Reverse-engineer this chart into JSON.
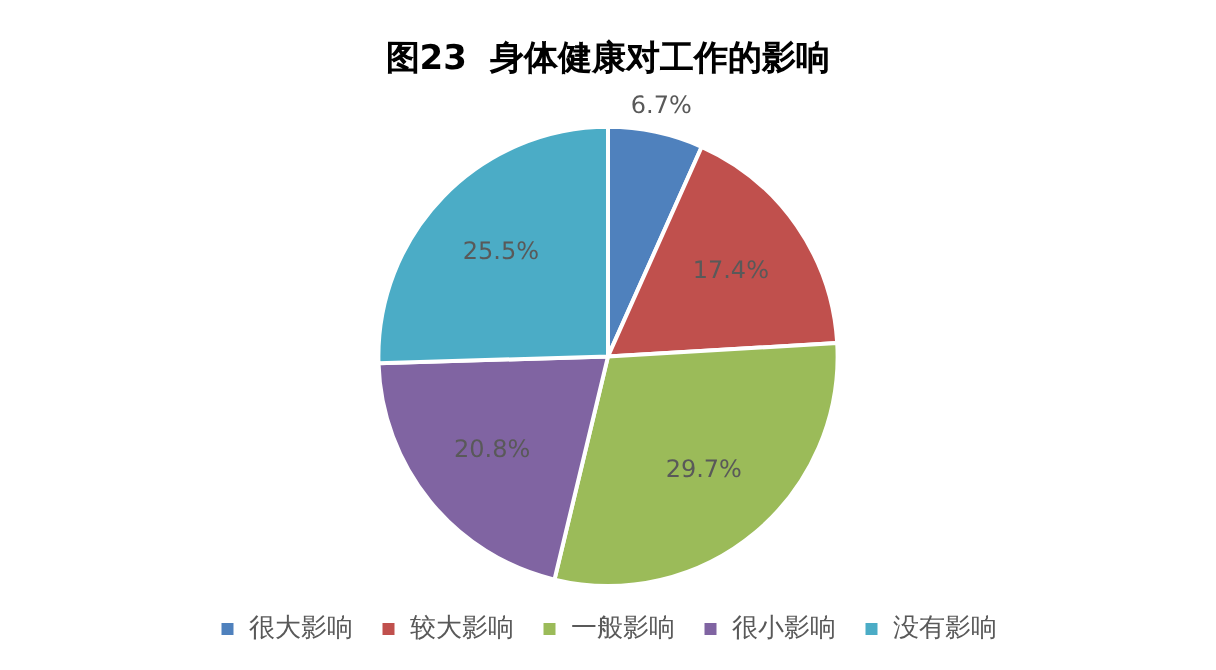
{
  "chart_data": {
    "type": "pie",
    "title": "图23  身体健康对工作的影响",
    "categories": [
      "很大影响",
      "较大影响",
      "一般影响",
      "很小影响",
      "没有影响"
    ],
    "values": [
      6.7,
      17.4,
      29.7,
      20.8,
      25.5
    ],
    "colors": [
      "#4f81bd",
      "#c0504d",
      "#9bbb59",
      "#8064a2",
      "#4bacc6"
    ],
    "value_labels": [
      "6.7%",
      "17.4%",
      "29.7%",
      "20.8%",
      "25.5%"
    ],
    "legend": "bottom"
  }
}
